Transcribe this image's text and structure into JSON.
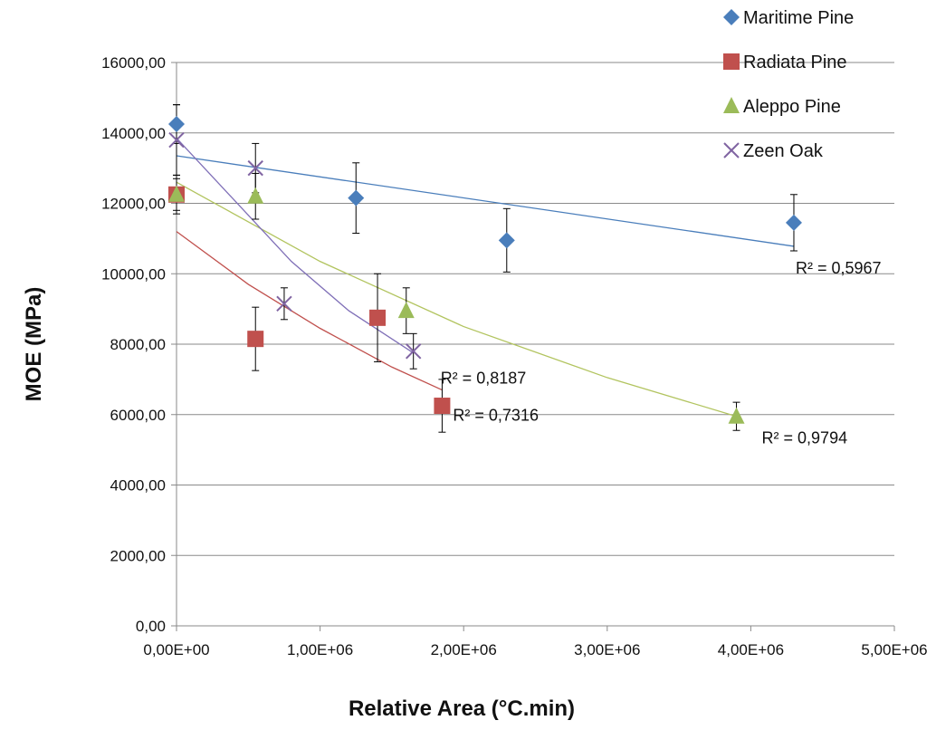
{
  "chart_data": {
    "type": "scatter",
    "xlabel": "Relative Area (°C.min)",
    "ylabel": "MOE (MPa)",
    "xlim": [
      0,
      5000000
    ],
    "ylim": [
      0,
      16000
    ],
    "x_ticks": [
      0,
      1000000,
      2000000,
      3000000,
      4000000,
      5000000
    ],
    "x_tick_labels": [
      "0,00E+00",
      "1,00E+06",
      "2,00E+06",
      "3,00E+06",
      "4,00E+06",
      "5,00E+06"
    ],
    "y_ticks": [
      0,
      2000,
      4000,
      6000,
      8000,
      10000,
      12000,
      14000,
      16000
    ],
    "y_tick_labels": [
      "0,00",
      "2000,00",
      "4000,00",
      "6000,00",
      "8000,00",
      "10000,00",
      "12000,00",
      "14000,00",
      "16000,00"
    ],
    "grid": "horizontal",
    "legend_position": "top-right",
    "series": [
      {
        "name": "Maritime Pine",
        "marker": "diamond",
        "color": "#4a7ebb",
        "trend_color": "#4a7ebb",
        "points": [
          {
            "x": 0,
            "y": 14250,
            "err": 550
          },
          {
            "x": 1250000,
            "y": 12150,
            "err": 1000
          },
          {
            "x": 2300000,
            "y": 10950,
            "err": 900
          },
          {
            "x": 4300000,
            "y": 11450,
            "err": 800
          }
        ],
        "trend": {
          "type": "linear",
          "x": [
            0,
            4300000
          ],
          "y": [
            13350,
            10780
          ]
        },
        "r2_label": "R² = 0,5967"
      },
      {
        "name": "Radiata Pine",
        "marker": "square",
        "color": "#c0504d",
        "trend_color": "#c0504d",
        "points": [
          {
            "x": 0,
            "y": 12250,
            "err": 550
          },
          {
            "x": 550000,
            "y": 8150,
            "err": 900
          },
          {
            "x": 1400000,
            "y": 8750,
            "err": 1250
          },
          {
            "x": 1850000,
            "y": 6250,
            "err": 750
          }
        ],
        "trend": {
          "type": "curve",
          "x": [
            0,
            500000,
            1000000,
            1500000,
            1850000
          ],
          "y": [
            11200,
            9700,
            8450,
            7350,
            6700
          ]
        },
        "r2_label": "R² = 0,7316"
      },
      {
        "name": "Aleppo Pine",
        "marker": "triangle",
        "color": "#9bbb59",
        "trend_color": "#b2c45f",
        "points": [
          {
            "x": 0,
            "y": 12250,
            "err": 450
          },
          {
            "x": 550000,
            "y": 12200,
            "err": 650
          },
          {
            "x": 1600000,
            "y": 8950,
            "err": 650
          },
          {
            "x": 3900000,
            "y": 5950,
            "err": 400
          }
        ],
        "trend": {
          "type": "curve",
          "x": [
            0,
            1000000,
            2000000,
            3000000,
            3900000
          ],
          "y": [
            12600,
            10350,
            8500,
            7050,
            5950
          ]
        },
        "r2_label": "R² = 0,9794"
      },
      {
        "name": "Zeen Oak",
        "marker": "x",
        "color": "#8064a2",
        "trend_color": "#7f6fb7",
        "points": [
          {
            "x": 0,
            "y": 13800,
            "err": 1000
          },
          {
            "x": 550000,
            "y": 13000,
            "err": 700
          },
          {
            "x": 750000,
            "y": 9150,
            "err": 450
          },
          {
            "x": 1650000,
            "y": 7800,
            "err": 500
          }
        ],
        "trend": {
          "type": "curve",
          "x": [
            0,
            400000,
            800000,
            1200000,
            1650000
          ],
          "y": [
            13850,
            12100,
            10350,
            8950,
            7750
          ]
        },
        "r2_label": "R² = 0,8187"
      }
    ]
  }
}
